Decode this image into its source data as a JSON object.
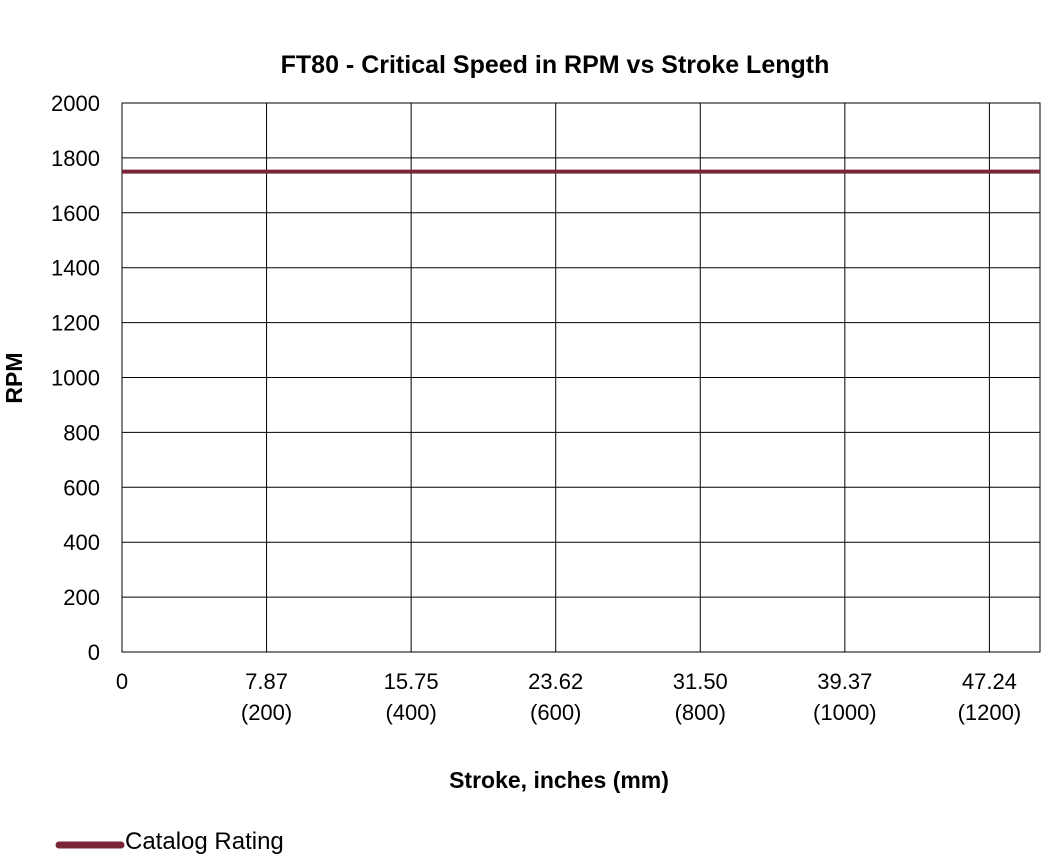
{
  "chart_data": {
    "type": "line",
    "title": "FT80 - Critical Speed in RPM vs Stroke Length",
    "xlabel": "Stroke, inches (mm)",
    "ylabel": "RPM",
    "xlim": [
      0,
      1270
    ],
    "ylim": [
      0,
      2000
    ],
    "y_ticks": [
      0,
      200,
      400,
      600,
      800,
      1000,
      1200,
      1400,
      1600,
      1800,
      2000
    ],
    "x_ticks": [
      {
        "value": 0,
        "label": "0",
        "sublabel": ""
      },
      {
        "value": 200,
        "label": "7.87",
        "sublabel": "(200)"
      },
      {
        "value": 400,
        "label": "15.75",
        "sublabel": "(400)"
      },
      {
        "value": 600,
        "label": "23.62",
        "sublabel": "(600)"
      },
      {
        "value": 800,
        "label": "31.50",
        "sublabel": "(800)"
      },
      {
        "value": 1000,
        "label": "39.37",
        "sublabel": "(1000)"
      },
      {
        "value": 1200,
        "label": "47.24",
        "sublabel": "(1200)"
      }
    ],
    "grid": true,
    "legend_position": "bottom-left",
    "series": [
      {
        "name": "Catalog Rating",
        "color": "#7b2638",
        "x": [
          0,
          1270
        ],
        "y": [
          1750,
          1750
        ]
      }
    ]
  }
}
